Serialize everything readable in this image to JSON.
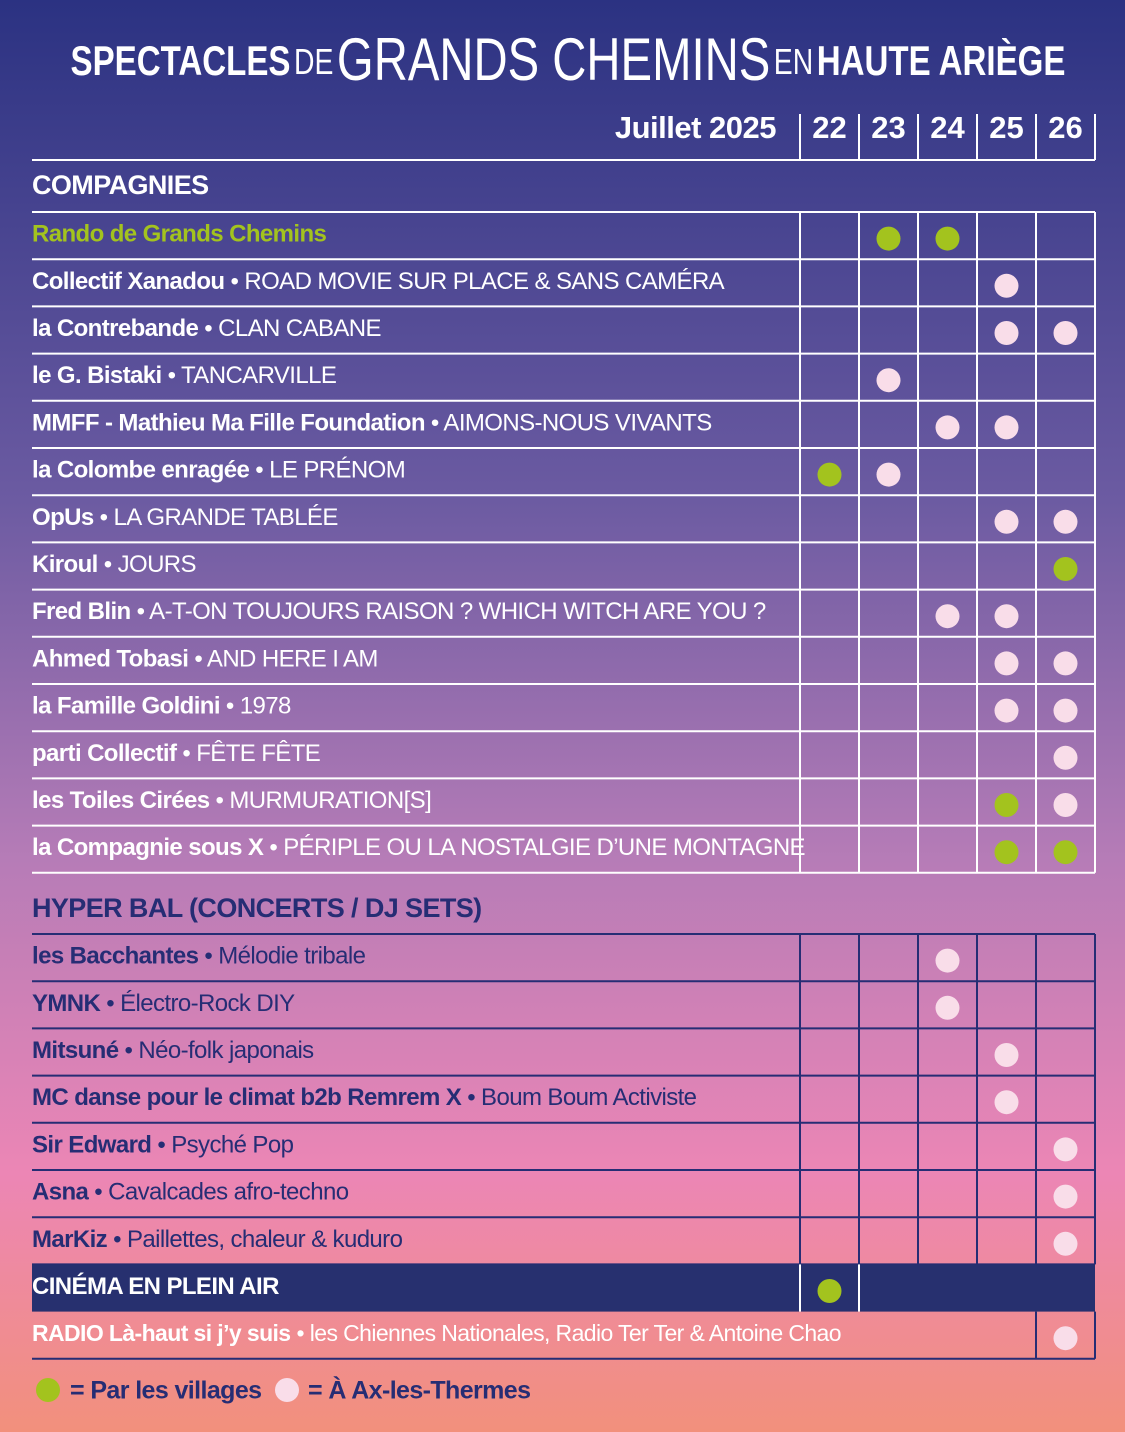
{
  "header": {
    "title": [
      "SPECTACLES",
      "DE",
      "GRANDS CHEMINS",
      "EN",
      "HAUTE ARIÈGE"
    ],
    "month": "Juillet 2025",
    "days": [
      22,
      23,
      24,
      25,
      26
    ]
  },
  "sections": [
    {
      "heading": "COMPAGNIES",
      "rows": [
        {
          "name": "Rando de Grands Chemins",
          "villages": [
            23,
            24
          ],
          "ax": []
        },
        {
          "name": "Collectif Xanadou",
          "title": "• ROAD MOVIE SUR PLACE & SANS CAMÉRA",
          "villages": [],
          "ax": [
            25
          ]
        },
        {
          "name": "la Contrebande",
          "title": "• CLAN CABANE",
          "villages": [],
          "ax": [
            25,
            26
          ]
        },
        {
          "name": "le G. Bistaki",
          "title": "• TANCARVILLE",
          "villages": [],
          "ax": [
            23
          ]
        },
        {
          "name": "MMFF - Mathieu Ma Fille Foundation",
          "title": "• AIMONS-NOUS VIVANTS",
          "villages": [],
          "ax": [
            24,
            25
          ]
        },
        {
          "name": "la Colombe enragée",
          "title": "• LE PRÉNOM",
          "villages": [
            22
          ],
          "ax": [
            23
          ]
        },
        {
          "name": "OpUs",
          "title": "• LA GRANDE TABLÉE",
          "villages": [],
          "ax": [
            25,
            26
          ]
        },
        {
          "name": "Kiroul",
          "title": "• JOURS",
          "villages": [
            26
          ],
          "ax": []
        },
        {
          "name": "Fred Blin",
          "title": "• A-T-ON TOUJOURS RAISON ? WHICH WITCH ARE YOU ?",
          "villages": [],
          "ax": [
            24,
            25
          ]
        },
        {
          "name": "Ahmed Tobasi",
          "title": "• AND HERE I AM",
          "villages": [],
          "ax": [
            25,
            26
          ]
        },
        {
          "name": "la Famille Goldini",
          "title": "• 1978",
          "villages": [],
          "ax": [
            25,
            26
          ]
        },
        {
          "name": "parti Collectif",
          "title": "• FÊTE FÊTE",
          "villages": [],
          "ax": [
            26
          ]
        },
        {
          "name": "les Toiles Cirées",
          "title": "• MURMURATION[S]",
          "villages": [
            25
          ],
          "ax": [
            26
          ]
        },
        {
          "name": "la Compagnie sous X",
          "title": "• PÉRIPLE OU LA NOSTALGIE D’UNE MONTAGNE",
          "villages": [
            25,
            26
          ],
          "ax": []
        }
      ]
    },
    {
      "heading": "HYPER BAL (CONCERTS / DJ SETS)",
      "rows": [
        {
          "name": "les Bacchantes",
          "title": "• Mélodie tribale",
          "villages": [],
          "ax": [
            24
          ]
        },
        {
          "name": "YMNK",
          "title": "• Électro-Rock DIY",
          "villages": [],
          "ax": [
            24
          ]
        },
        {
          "name": "Mitsuné",
          "title": "• Néo-folk japonais",
          "villages": [],
          "ax": [
            25
          ]
        },
        {
          "name": "MC danse pour le climat b2b Remrem X",
          "title": "• Boum Boum Activiste",
          "villages": [],
          "ax": [
            25
          ]
        },
        {
          "name": "Sir Edward",
          "title": "• Psyché Pop",
          "villages": [],
          "ax": [
            26
          ]
        },
        {
          "name": "Asna",
          "title": "• Cavalcades afro-techno",
          "villages": [],
          "ax": [
            26
          ]
        },
        {
          "name": "MarKiz",
          "title": "• Paillettes, chaleur & kuduro",
          "villages": [],
          "ax": [
            26
          ]
        }
      ]
    }
  ],
  "cinema": {
    "name": "CINÉMA EN PLEIN AIR",
    "villages": [
      22
    ],
    "ax": []
  },
  "radio": {
    "name": "RADIO Là-haut si j’y suis",
    "title": "• les Chiennes Nationales, Radio Ter Ter &  Antoine Chao",
    "villages": [],
    "ax": [
      26
    ]
  },
  "legend": {
    "villages": "= Par les villages",
    "ax": "= À Ax-les-Thermes"
  }
}
